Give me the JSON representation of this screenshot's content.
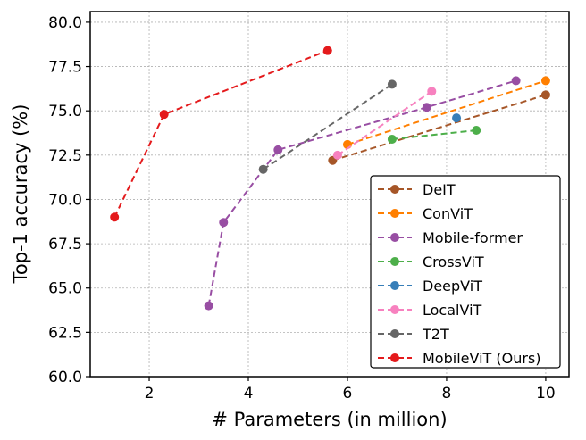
{
  "chart_data": {
    "type": "line",
    "title": "",
    "xlabel": "# Parameters (in million)",
    "ylabel": "Top-1 accuracy (%)",
    "xlim": [
      0.81,
      10.47
    ],
    "ylim": [
      60,
      80.6
    ],
    "xticks": [
      2,
      4,
      6,
      8,
      10
    ],
    "xtick_labels": [
      "2",
      "4",
      "6",
      "8",
      "10"
    ],
    "yticks": [
      60,
      62.5,
      65,
      67.5,
      70,
      72.5,
      75,
      77.5,
      80
    ],
    "ytick_labels": [
      "60.0",
      "62.5",
      "65.0",
      "67.5",
      "70.0",
      "72.5",
      "75.0",
      "77.5",
      "80.0"
    ],
    "grid": true,
    "legend_position": "bottom-right",
    "series": [
      {
        "name": "DeIT",
        "color": "#a65628",
        "x": [
          5.7,
          10.0
        ],
        "y": [
          72.2,
          75.9
        ]
      },
      {
        "name": "ConViT",
        "color": "#ff7f00",
        "x": [
          6.0,
          10.0
        ],
        "y": [
          73.1,
          76.7
        ]
      },
      {
        "name": "Mobile-former",
        "color": "#984ea3",
        "x": [
          3.2,
          3.5,
          4.6,
          7.6,
          9.4
        ],
        "y": [
          64.0,
          68.7,
          72.8,
          75.2,
          76.7
        ]
      },
      {
        "name": "CrossViT",
        "color": "#4daf4a",
        "x": [
          6.9,
          8.6
        ],
        "y": [
          73.4,
          73.9
        ]
      },
      {
        "name": "DeepViT",
        "color": "#377eb8",
        "x": [
          8.2
        ],
        "y": [
          74.6
        ]
      },
      {
        "name": "LocalViT",
        "color": "#f781bf",
        "x": [
          5.8,
          7.7
        ],
        "y": [
          72.5,
          76.1
        ]
      },
      {
        "name": "T2T",
        "color": "#666666",
        "x": [
          4.3,
          6.9
        ],
        "y": [
          71.7,
          76.5
        ]
      },
      {
        "name": "MobileViT (Ours)",
        "color": "#e41a1c",
        "x": [
          1.3,
          2.3,
          5.6
        ],
        "y": [
          69.0,
          74.8,
          78.4
        ]
      }
    ]
  }
}
